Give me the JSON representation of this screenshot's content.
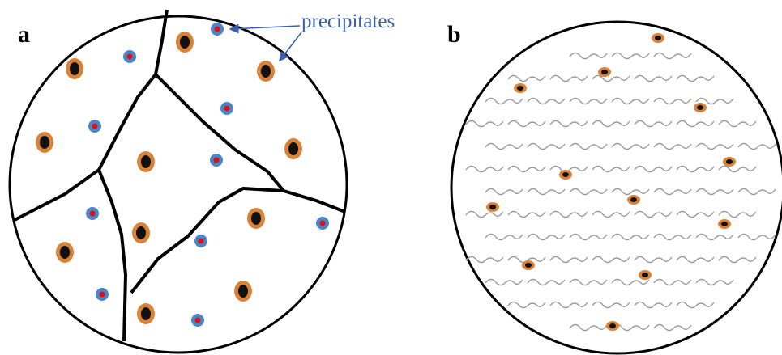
{
  "panels": [
    {
      "label": "a"
    },
    {
      "label": "b"
    }
  ],
  "annotation": {
    "text": "precipitates"
  }
}
